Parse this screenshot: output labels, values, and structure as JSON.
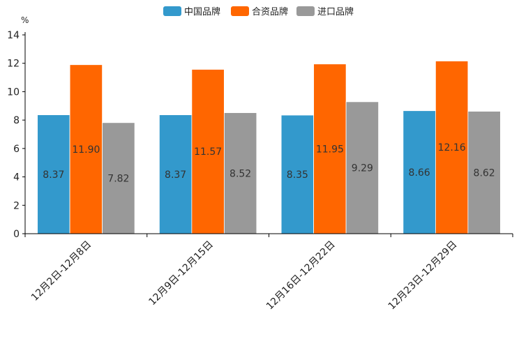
{
  "chart_data": {
    "type": "bar",
    "title": "",
    "xlabel": "",
    "ylabel": "%",
    "ylim": [
      0,
      14
    ],
    "yticks": [
      0,
      2,
      4,
      6,
      8,
      10,
      12,
      14
    ],
    "grid": false,
    "legend_position": "top-center",
    "categories": [
      "12月2日-12月8日",
      "12月9日-12月15日",
      "12月16日-12月22日",
      "12月23日-12月29日"
    ],
    "series": [
      {
        "name": "中国品牌",
        "color": "#3399CC",
        "values": [
          8.37,
          8.37,
          8.35,
          8.66
        ],
        "labels": [
          "8.37",
          "8.37",
          "8.35",
          "8.66"
        ]
      },
      {
        "name": "合资品牌",
        "color": "#FF6600",
        "values": [
          11.9,
          11.57,
          11.95,
          12.16
        ],
        "labels": [
          "11.90",
          "11.57",
          "11.95",
          "12.16"
        ]
      },
      {
        "name": "进口品牌",
        "color": "#999999",
        "values": [
          7.82,
          8.52,
          9.29,
          8.62
        ],
        "labels": [
          "7.82",
          "8.52",
          "9.29",
          "8.62"
        ]
      }
    ]
  }
}
